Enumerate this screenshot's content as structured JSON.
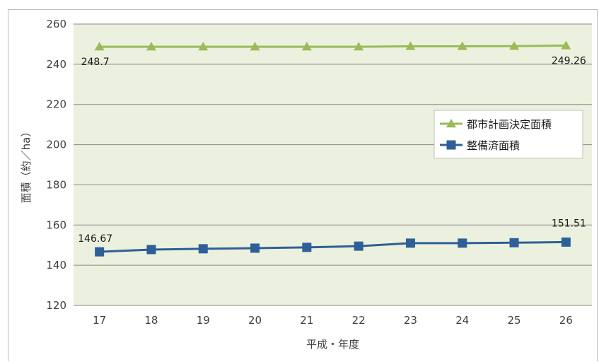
{
  "chart_data": {
    "type": "line",
    "title": "",
    "xlabel": "平成・年度",
    "ylabel": "面積（約／ha）",
    "categories": [
      "17",
      "18",
      "19",
      "20",
      "21",
      "22",
      "23",
      "24",
      "25",
      "26"
    ],
    "ylim": [
      120,
      260
    ],
    "yticks": [
      "120",
      "140",
      "160",
      "180",
      "200",
      "220",
      "240",
      "260"
    ],
    "grid": true,
    "legend_position": "right",
    "series": [
      {
        "name": "都市計画決定面積",
        "color": "#9bbb59",
        "marker": "triangle",
        "values": [
          248.7,
          248.7,
          248.7,
          248.7,
          248.7,
          248.7,
          248.9,
          248.9,
          249.0,
          249.26
        ],
        "labels": {
          "first": "248.7",
          "last": "249.26"
        }
      },
      {
        "name": "整備済面積",
        "color": "#2f5f98",
        "marker": "square",
        "values": [
          146.67,
          147.8,
          148.2,
          148.5,
          148.9,
          149.5,
          151.0,
          151.0,
          151.2,
          151.51
        ],
        "labels": {
          "first": "146.67",
          "last": "151.51"
        }
      }
    ]
  }
}
